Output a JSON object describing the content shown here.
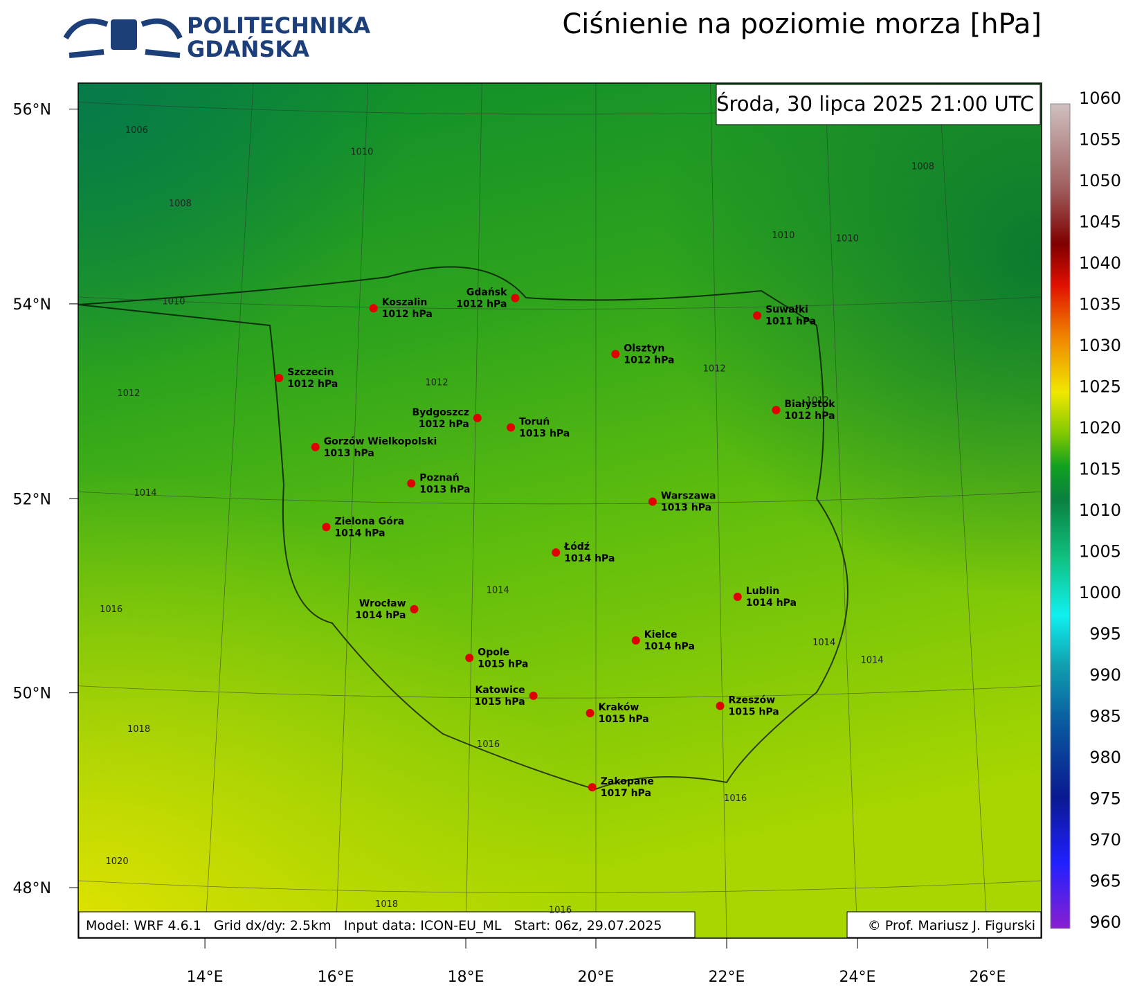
{
  "header": {
    "logo_lines": [
      "POLITECHNIKA",
      "GDAŃSKA"
    ],
    "title": "Ciśnienie na poziomie morza [hPa]"
  },
  "map": {
    "timestamp": "Środa, 30 lipca 2025 21:00 UTC",
    "lat_labels": [
      "56°N",
      "54°N",
      "52°N",
      "50°N",
      "48°N"
    ],
    "lon_labels": [
      "14°E",
      "16°E",
      "18°E",
      "20°E",
      "22°E",
      "24°E",
      "26°E"
    ],
    "cities": [
      {
        "name": "Koszalin",
        "label": "1012 hPa"
      },
      {
        "name": "Gdańsk",
        "label": "1012 hPa"
      },
      {
        "name": "Suwałki",
        "label": "1011 hPa"
      },
      {
        "name": "Olsztyn",
        "label": "1012 hPa"
      },
      {
        "name": "Szczecin",
        "label": "1012 hPa"
      },
      {
        "name": "Bydgoszcz",
        "label": "1012 hPa"
      },
      {
        "name": "Toruń",
        "label": "1013 hPa"
      },
      {
        "name": "Białystok",
        "label": "1012 hPa"
      },
      {
        "name": "Gorzów Wielkopolski",
        "label": "1013 hPa"
      },
      {
        "name": "Poznań",
        "label": "1013 hPa"
      },
      {
        "name": "Warszawa",
        "label": "1013 hPa"
      },
      {
        "name": "Zielona Góra",
        "label": "1014 hPa"
      },
      {
        "name": "Łódź",
        "label": "1014 hPa"
      },
      {
        "name": "Wrocław",
        "label": "1014 hPa"
      },
      {
        "name": "Lublin",
        "label": "1014 hPa"
      },
      {
        "name": "Kielce",
        "label": "1014 hPa"
      },
      {
        "name": "Opole",
        "label": "1015 hPa"
      },
      {
        "name": "Katowice",
        "label": "1015 hPa"
      },
      {
        "name": "Kraków",
        "label": "1015 hPa"
      },
      {
        "name": "Rzeszów",
        "label": "1015 hPa"
      },
      {
        "name": "Zakopane",
        "label": "1017 hPa"
      }
    ],
    "contour_labels": [
      "1006",
      "1010",
      "1008",
      "1008",
      "1010",
      "1010",
      "1010",
      "1012",
      "1012",
      "1012",
      "1012",
      "1014",
      "1014",
      "1016",
      "1014",
      "1014",
      "1018",
      "1016",
      "1016",
      "1020",
      "1018",
      "1016"
    ]
  },
  "colorbar": {
    "ticks": [
      "1060",
      "1055",
      "1050",
      "1045",
      "1040",
      "1035",
      "1030",
      "1025",
      "1020",
      "1015",
      "1010",
      "1005",
      "1000",
      "995",
      "990",
      "985",
      "980",
      "975",
      "970",
      "965",
      "960"
    ]
  },
  "footer": {
    "model_info": "Model: WRF 4.6.1   Grid dx/dy: 2.5km   Input data: ICON-EU_ML   Start: 06z, 29.07.2025",
    "copyright": "© Prof. Mariusz J. Figurski"
  }
}
